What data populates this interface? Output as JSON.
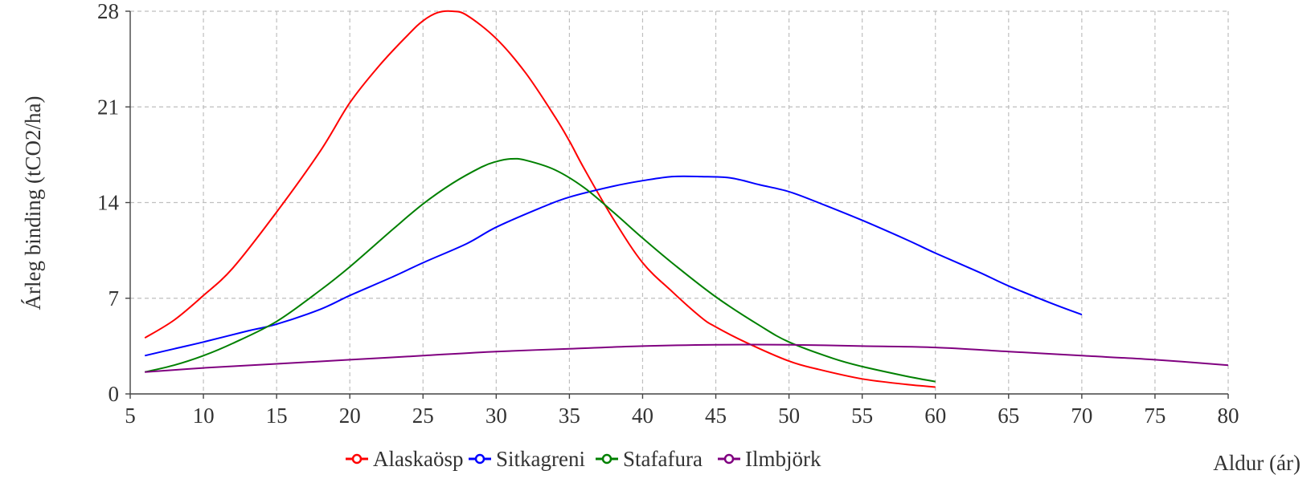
{
  "chart_data": {
    "type": "line",
    "title": "",
    "xlabel": "Aldur (ár)",
    "ylabel": "Árleg binding (tCO2/ha)",
    "xlim": [
      5,
      80
    ],
    "ylim": [
      0,
      28
    ],
    "xticks": [
      5,
      10,
      15,
      20,
      25,
      30,
      35,
      40,
      45,
      50,
      55,
      60,
      65,
      70,
      75,
      80
    ],
    "yticks": [
      0,
      7,
      14,
      21,
      28
    ],
    "grid": true,
    "legend_position": "bottom",
    "series": [
      {
        "name": "Alaskaösp",
        "color": "#ff0000",
        "points": [
          [
            6,
            4.1
          ],
          [
            8,
            5.4
          ],
          [
            10,
            7.2
          ],
          [
            12,
            9.2
          ],
          [
            15,
            13.3
          ],
          [
            18,
            17.8
          ],
          [
            20,
            21.3
          ],
          [
            22,
            24.0
          ],
          [
            24,
            26.3
          ],
          [
            25,
            27.3
          ],
          [
            26,
            27.9
          ],
          [
            27,
            28.0
          ],
          [
            28,
            27.7
          ],
          [
            30,
            26.0
          ],
          [
            32,
            23.5
          ],
          [
            34,
            20.3
          ],
          [
            35,
            18.5
          ],
          [
            36,
            16.5
          ],
          [
            38,
            12.8
          ],
          [
            40,
            9.6
          ],
          [
            42,
            7.5
          ],
          [
            44,
            5.6
          ],
          [
            45,
            4.9
          ],
          [
            47,
            3.8
          ],
          [
            50,
            2.4
          ],
          [
            52,
            1.8
          ],
          [
            55,
            1.1
          ],
          [
            58,
            0.7
          ],
          [
            60,
            0.5
          ]
        ]
      },
      {
        "name": "Sitkagreni",
        "color": "#0000ff",
        "points": [
          [
            6,
            2.8
          ],
          [
            8,
            3.3
          ],
          [
            10,
            3.8
          ],
          [
            13,
            4.6
          ],
          [
            15,
            5.1
          ],
          [
            18,
            6.2
          ],
          [
            20,
            7.2
          ],
          [
            23,
            8.6
          ],
          [
            25,
            9.6
          ],
          [
            28,
            11.0
          ],
          [
            30,
            12.2
          ],
          [
            33,
            13.6
          ],
          [
            35,
            14.4
          ],
          [
            38,
            15.2
          ],
          [
            40,
            15.6
          ],
          [
            42,
            15.9
          ],
          [
            44,
            15.9
          ],
          [
            46,
            15.8
          ],
          [
            48,
            15.3
          ],
          [
            50,
            14.8
          ],
          [
            52,
            14.0
          ],
          [
            55,
            12.7
          ],
          [
            58,
            11.3
          ],
          [
            60,
            10.3
          ],
          [
            63,
            8.9
          ],
          [
            65,
            7.9
          ],
          [
            68,
            6.6
          ],
          [
            70,
            5.8
          ]
        ]
      },
      {
        "name": "Stafafura",
        "color": "#008000",
        "points": [
          [
            6,
            1.6
          ],
          [
            8,
            2.1
          ],
          [
            10,
            2.8
          ],
          [
            12,
            3.7
          ],
          [
            15,
            5.3
          ],
          [
            18,
            7.6
          ],
          [
            20,
            9.3
          ],
          [
            23,
            12.1
          ],
          [
            25,
            13.9
          ],
          [
            27,
            15.4
          ],
          [
            29,
            16.6
          ],
          [
            30,
            17.0
          ],
          [
            31,
            17.2
          ],
          [
            32,
            17.1
          ],
          [
            34,
            16.4
          ],
          [
            36,
            15.1
          ],
          [
            38,
            13.3
          ],
          [
            40,
            11.4
          ],
          [
            42,
            9.6
          ],
          [
            45,
            7.1
          ],
          [
            48,
            5.0
          ],
          [
            50,
            3.8
          ],
          [
            53,
            2.6
          ],
          [
            55,
            2.0
          ],
          [
            58,
            1.3
          ],
          [
            60,
            0.9
          ]
        ]
      },
      {
        "name": "Ilmbjörk",
        "color": "#800080",
        "points": [
          [
            6,
            1.6
          ],
          [
            10,
            1.9
          ],
          [
            15,
            2.2
          ],
          [
            20,
            2.5
          ],
          [
            25,
            2.8
          ],
          [
            30,
            3.1
          ],
          [
            35,
            3.3
          ],
          [
            40,
            3.5
          ],
          [
            45,
            3.6
          ],
          [
            50,
            3.6
          ],
          [
            55,
            3.5
          ],
          [
            60,
            3.4
          ],
          [
            65,
            3.1
          ],
          [
            70,
            2.8
          ],
          [
            75,
            2.5
          ],
          [
            80,
            2.1
          ]
        ]
      }
    ]
  }
}
